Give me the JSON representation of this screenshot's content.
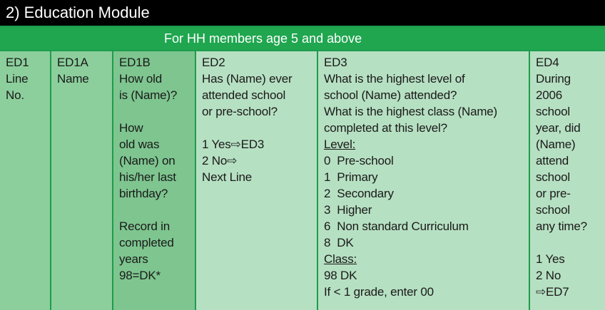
{
  "header": {
    "title": "2) Education Module",
    "banner": "For HH members age 5 and above"
  },
  "columns": [
    {
      "paragraphs": [
        [
          "ED1",
          "Line",
          "No."
        ]
      ]
    },
    {
      "paragraphs": [
        [
          "ED1A",
          "Name"
        ]
      ]
    },
    {
      "paragraphs": [
        [
          "ED1B",
          "How old",
          "is (Name)?"
        ],
        [
          "How",
          "old was",
          "(Name) on",
          "his/her last",
          "birthday?"
        ],
        [
          "Record in",
          "completed",
          "years",
          "98=DK*"
        ]
      ]
    },
    {
      "paragraphs": [
        [
          "ED2",
          "Has (Name) ever",
          "attended school",
          "or pre-school?"
        ],
        [
          "1 Yes⇨ED3",
          "2 No⇨",
          "Next Line"
        ]
      ]
    },
    {
      "paragraphs": [
        [
          "ED3",
          "What is the highest level of",
          "school (Name) attended?",
          "What is the highest class (Name)",
          "completed at this level?",
          "Level:",
          "0  Pre-school",
          "1  Primary",
          "2  Secondary",
          "3  Higher",
          "6  Non standard Curriculum",
          "8  DK",
          "Class:",
          "98 DK",
          "If < 1 grade, enter 00"
        ]
      ]
    },
    {
      "paragraphs": [
        [
          "ED4",
          "During",
          "2006",
          "school",
          "year, did",
          "(Name)",
          "attend",
          "school",
          "or pre-",
          "school",
          "any time?"
        ],
        [
          "1 Yes",
          "2 No",
          "⇨ED7"
        ]
      ]
    }
  ]
}
